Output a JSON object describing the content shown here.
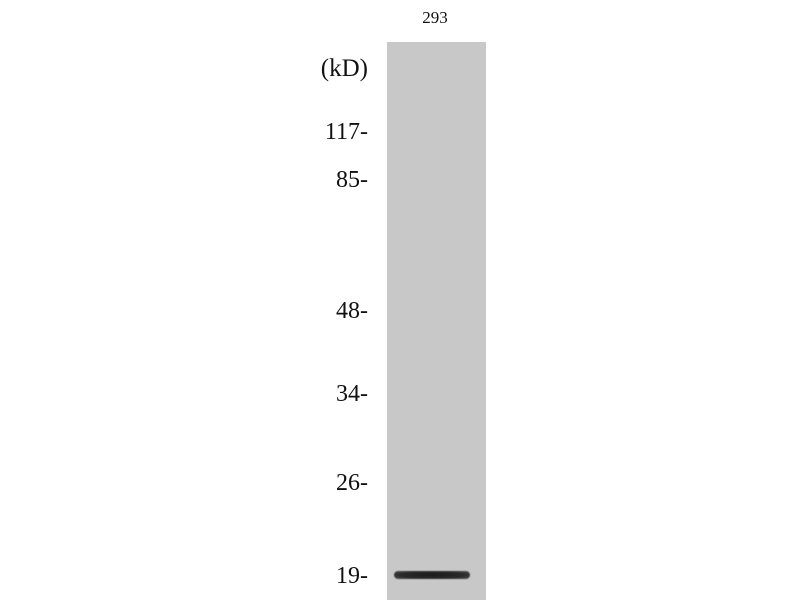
{
  "lanes": [
    {
      "label": "293"
    }
  ],
  "unit_label": "(kD)",
  "markers": [
    {
      "label": "117-",
      "kd": 117
    },
    {
      "label": "85-",
      "kd": 85
    },
    {
      "label": "48-",
      "kd": 48
    },
    {
      "label": "34-",
      "kd": 34
    },
    {
      "label": "26-",
      "kd": 26
    },
    {
      "label": "19-",
      "kd": 19
    }
  ],
  "bands": [
    {
      "lane": "293",
      "approx_kd": 19,
      "intensity": "strong"
    }
  ],
  "colors": {
    "membrane": "#c8c8c8",
    "band": "#1a1a1a"
  }
}
